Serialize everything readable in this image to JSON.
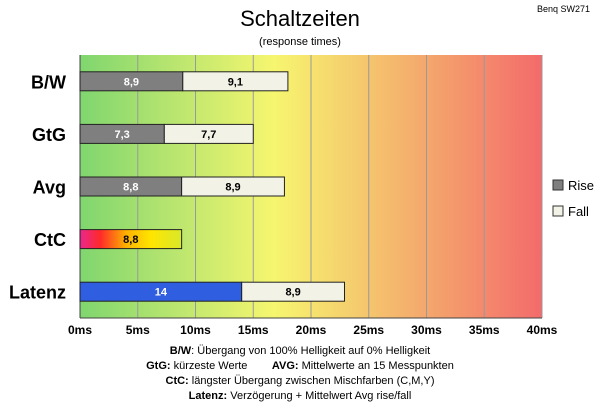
{
  "header": {
    "title": "Schaltzeiten",
    "subtitle": "(response times)",
    "corner_label": "Benq SW271"
  },
  "chart_data": {
    "type": "bar",
    "orientation": "horizontal",
    "stacked": true,
    "categories": [
      "B/W",
      "GtG",
      "Avg",
      "CtC",
      "Latenz"
    ],
    "series": [
      {
        "name": "Rise",
        "values": [
          8.9,
          7.3,
          8.8,
          8.8,
          14
        ],
        "color": "#7f7f7f"
      },
      {
        "name": "Fall",
        "values": [
          9.1,
          7.7,
          8.9,
          null,
          8.9
        ],
        "color": "#f2f2e6"
      }
    ],
    "special_colors": {
      "CtC": "rainbow",
      "Latenz_rise": "#2f5fe0"
    },
    "xlim": [
      0,
      40
    ],
    "x_ticks": [
      "0ms",
      "5ms",
      "10ms",
      "15ms",
      "20ms",
      "25ms",
      "30ms",
      "35ms",
      "40ms"
    ],
    "background_gradient": [
      "#7fd66f",
      "#f6f66f",
      "#f36b6b"
    ],
    "grid": true,
    "legend_position": "right"
  },
  "notes": [
    {
      "key": "B/W",
      "text": ":  Übergang von 100% Helligkeit auf 0% Helligkeit"
    },
    {
      "key": "GtG:",
      "text": " kürzeste  Werte",
      "key2": "AVG:",
      "text2": " Mittelwerte  an 15 Messpunkten"
    },
    {
      "key": "CtC:",
      "text": " längster Übergang  zwischen Mischfarben  (C,M,Y)"
    },
    {
      "key": "Latenz:",
      "text": " Verzögerung  + Mittelwert  Avg rise/fall"
    }
  ]
}
